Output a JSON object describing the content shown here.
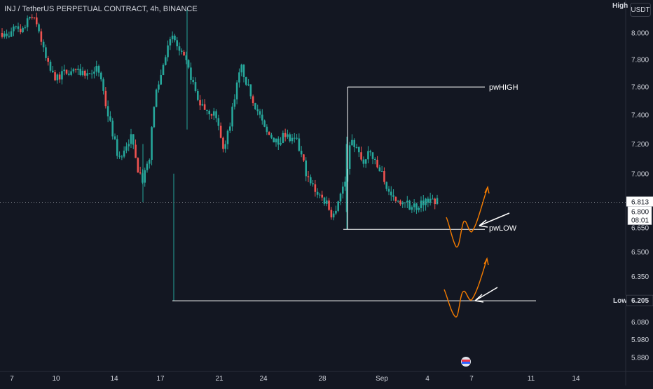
{
  "header": {
    "title": "INJ / TetherUS PERPETUAL CONTRACT, 4h, BINANCE"
  },
  "price_axis": {
    "currency_label": "USDT",
    "high_label": "High",
    "last_price": "6.813",
    "bid_price": "6.800",
    "countdown": "08:01",
    "low_label": "Low",
    "low_price": "6.205"
  },
  "annotations": {
    "pw_high": "pwHIGH",
    "pw_low": "pwLOW"
  },
  "colors": {
    "background": "#131722",
    "up": "#26a69a",
    "down": "#ef5350",
    "text": "#d1d4dc",
    "annotation_line": "#ffffff",
    "projection": "#f57c00",
    "arrow": "#ffffff"
  },
  "chart_data": {
    "type": "candlestick",
    "symbol": "INJ / TetherUS PERPETUAL CONTRACT",
    "timeframe": "4h",
    "exchange": "BINANCE",
    "y_axis": {
      "scale": "log",
      "ticks": [
        "8.000",
        "7.800",
        "7.600",
        "7.400",
        "7.200",
        "7.000",
        "6.650",
        "6.500",
        "6.350",
        "6.205",
        "6.080",
        "5.980",
        "5.880"
      ],
      "range": [
        5.85,
        8.15
      ]
    },
    "x_axis": {
      "ticks": [
        "7",
        "10",
        "14",
        "17",
        "21",
        "24",
        "28",
        "Sep",
        "4",
        "7",
        "11",
        "14"
      ]
    },
    "close_path": [
      8.0,
      7.95,
      8.05,
      7.98,
      8.08,
      8.12,
      8.02,
      7.82,
      7.7,
      7.66,
      7.7,
      7.72,
      7.7,
      7.72,
      7.68,
      7.74,
      7.7,
      7.45,
      7.28,
      7.1,
      7.18,
      7.25,
      7.05,
      6.95,
      7.1,
      7.55,
      7.7,
      7.92,
      7.96,
      7.85,
      7.78,
      7.65,
      7.5,
      7.45,
      7.42,
      7.4,
      7.15,
      7.3,
      7.55,
      7.75,
      7.62,
      7.5,
      7.4,
      7.28,
      7.25,
      7.2,
      7.28,
      7.22,
      7.22,
      7.1,
      6.95,
      6.9,
      6.85,
      6.8,
      6.72,
      6.85,
      6.95,
      7.25,
      7.15,
      7.05,
      7.15,
      7.05,
      7.0,
      6.88,
      6.82,
      6.79,
      6.8,
      6.78,
      6.8,
      6.82,
      6.84,
      6.81
    ],
    "levels": [
      {
        "name": "pwHIGH",
        "price": 7.6
      },
      {
        "name": "pwLOW",
        "price": 6.64
      },
      {
        "name": "Low",
        "price": 6.205
      }
    ],
    "current_price": 6.813
  }
}
